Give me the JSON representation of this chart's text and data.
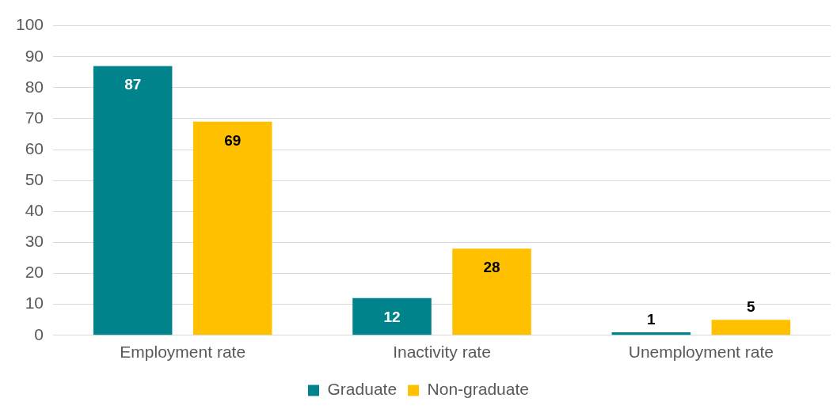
{
  "chart_data": {
    "type": "bar",
    "categories": [
      "Employment rate",
      "Inactivity rate",
      "Unemployment rate"
    ],
    "series": [
      {
        "name": "Graduate",
        "color": "#00838a",
        "values": [
          87,
          12,
          1
        ]
      },
      {
        "name": "Non-graduate",
        "color": "#ffc000",
        "values": [
          69,
          28,
          5
        ]
      }
    ],
    "ylim": [
      0,
      100
    ],
    "yticks": [
      0,
      10,
      20,
      30,
      40,
      50,
      60,
      70,
      80,
      90,
      100
    ],
    "grid": "y",
    "legend": "bottom",
    "data_labels": true
  }
}
